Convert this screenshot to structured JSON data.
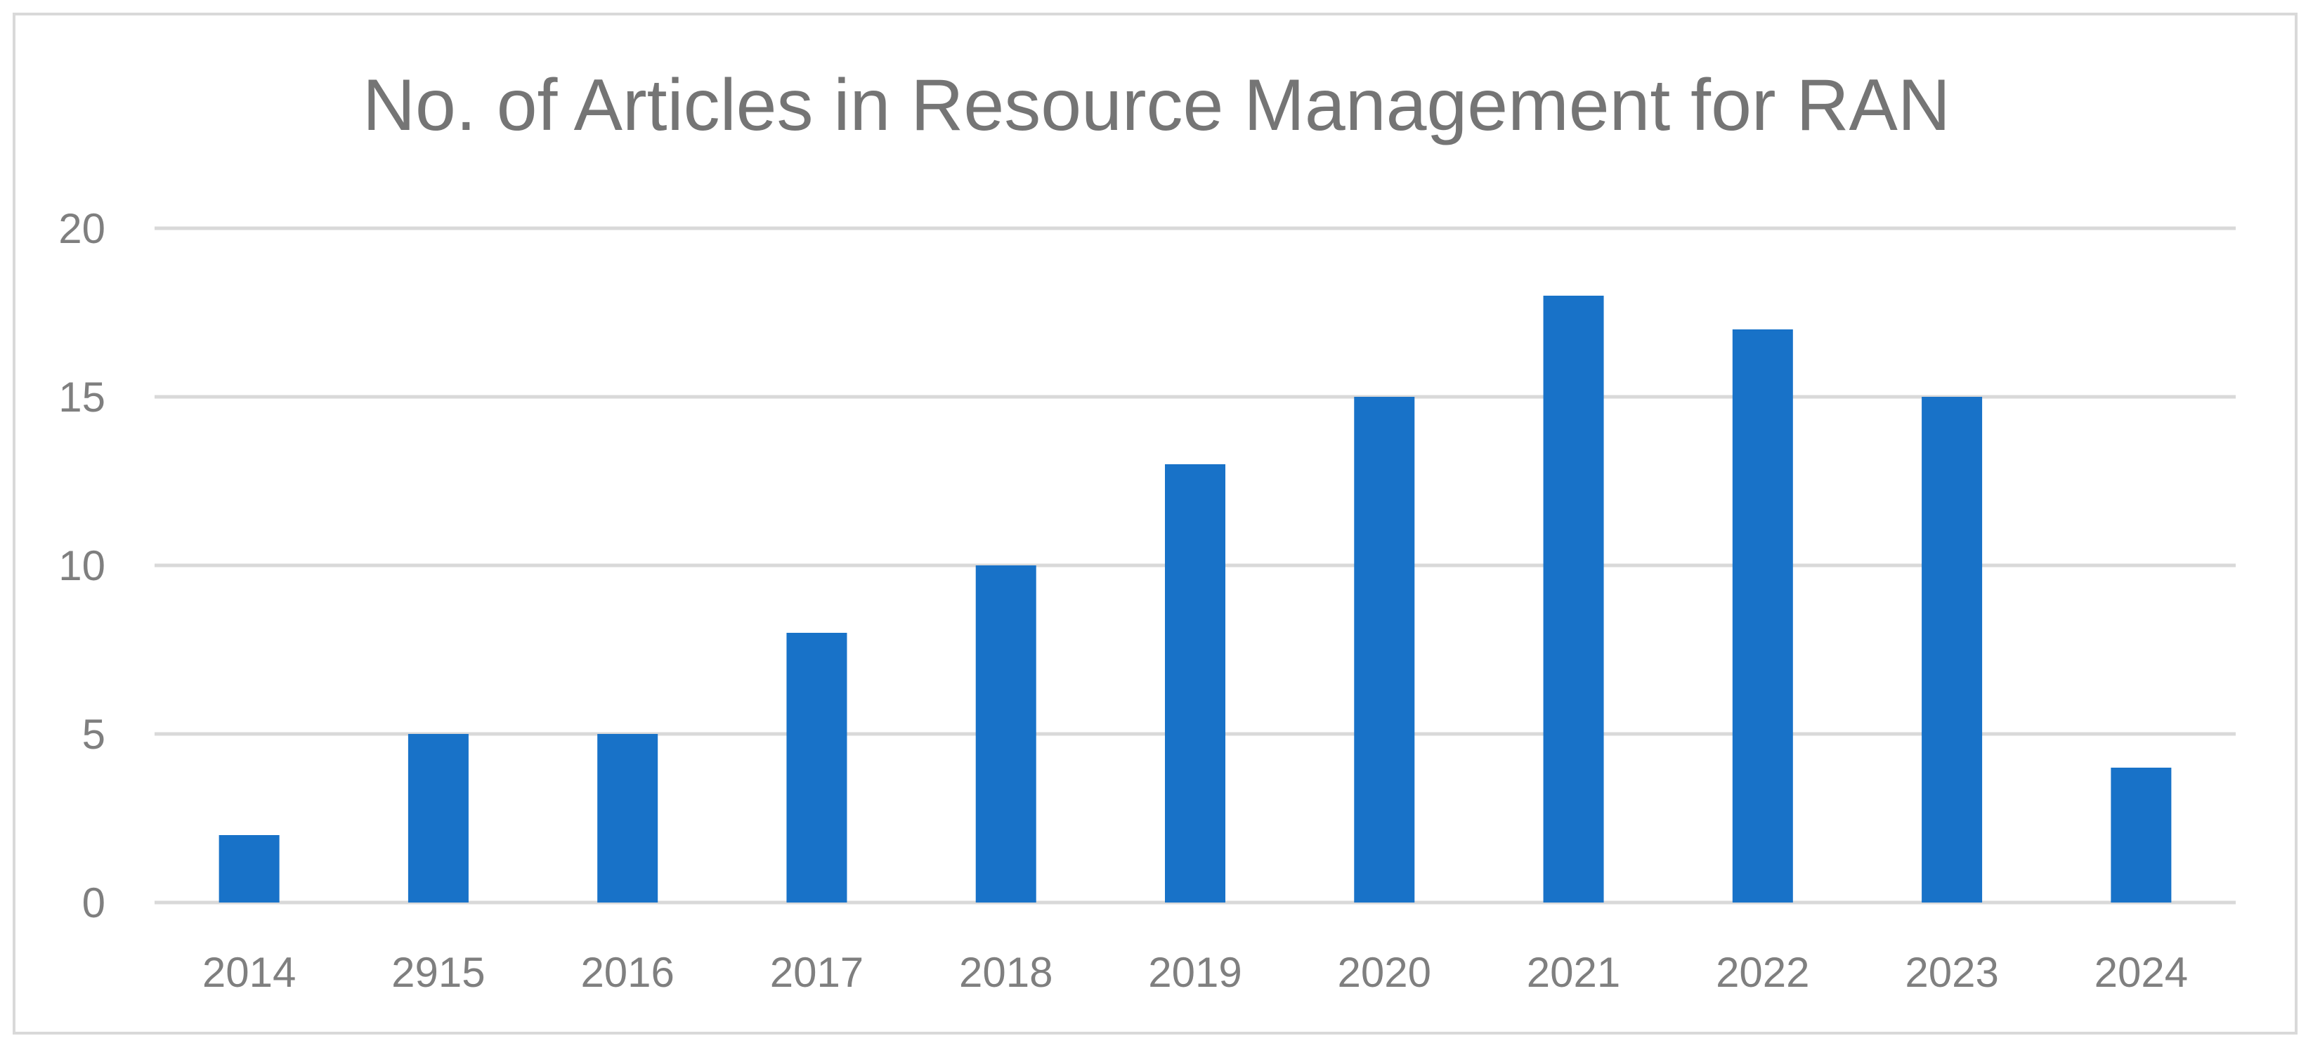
{
  "chart_data": {
    "type": "bar",
    "title": "No. of Articles in Resource Management for RAN",
    "xlabel": "",
    "ylabel": "",
    "categories": [
      "2014",
      "2915",
      "2016",
      "2017",
      "2018",
      "2019",
      "2020",
      "2021",
      "2022",
      "2023",
      "2024"
    ],
    "values": [
      2,
      5,
      5,
      8,
      10,
      13,
      15,
      18,
      17,
      15,
      4
    ],
    "ylim": [
      0,
      20
    ],
    "yticks": [
      "0",
      "5",
      "10",
      "15",
      "20"
    ],
    "grid": true,
    "legend": "none",
    "colors": {
      "bar": "#1872c8",
      "grid": "#d9d9d9",
      "text": "#7f7f7f",
      "border": "#d9d9d9"
    }
  }
}
